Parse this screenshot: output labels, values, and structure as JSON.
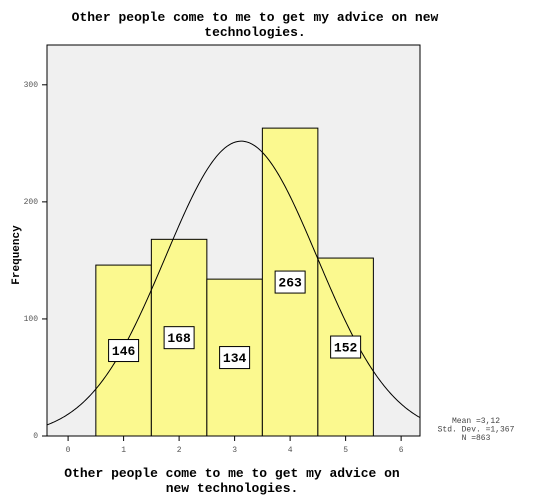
{
  "chart_data": {
    "type": "histogram",
    "title": "Other people come to me to get my advice on new technologies.",
    "x_label": "Other people come to me to get my advice on new technologies.",
    "y_label": "Frequency",
    "bins": [
      0.5,
      1.5,
      2.5,
      3.5,
      4.5,
      5.5
    ],
    "values": [
      146,
      168,
      134,
      263,
      152
    ],
    "color": "#fbf98f",
    "background": "#f0f0f0",
    "xlim": [
      -0.38,
      6.34
    ],
    "xticks": [
      0,
      1,
      2,
      3,
      4,
      5,
      6
    ],
    "ylim": [
      0,
      334
    ],
    "yticks": [
      0,
      100,
      200,
      300
    ],
    "normal_curve": true,
    "stats": [
      {
        "value": 3.12,
        "label": "Mean =3,12"
      },
      {
        "value": 1.367,
        "label": "Std. Dev. =1,367"
      },
      {
        "value": 863,
        "label": "N =863"
      }
    ]
  }
}
